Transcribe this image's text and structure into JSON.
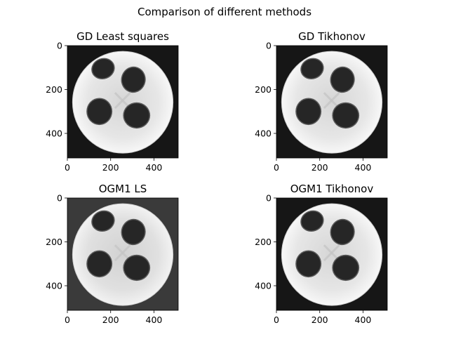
{
  "figure": {
    "suptitle": "Comparison of different methods"
  },
  "chart_data": [
    {
      "type": "image",
      "title": "GD Least squares",
      "xlim": [
        0,
        512
      ],
      "ylim": [
        512,
        0
      ],
      "xticks": [
        "0",
        "200",
        "400"
      ],
      "yticks": [
        "0",
        "200",
        "400"
      ],
      "background": "#161616",
      "colormap": "gray"
    },
    {
      "type": "image",
      "title": "GD Tikhonov",
      "xlim": [
        0,
        512
      ],
      "ylim": [
        512,
        0
      ],
      "xticks": [
        "0",
        "200",
        "400"
      ],
      "yticks": [
        "0",
        "200",
        "400"
      ],
      "background": "#161616",
      "colormap": "gray"
    },
    {
      "type": "image",
      "title": "OGM1 LS",
      "xlim": [
        0,
        512
      ],
      "ylim": [
        512,
        0
      ],
      "xticks": [
        "0",
        "200",
        "400"
      ],
      "yticks": [
        "0",
        "200",
        "400"
      ],
      "background": "#3a3a3a",
      "colormap": "gray"
    },
    {
      "type": "image",
      "title": "OGM1 Tikhonov",
      "xlim": [
        0,
        512
      ],
      "ylim": [
        512,
        0
      ],
      "xticks": [
        "0",
        "200",
        "400"
      ],
      "yticks": [
        "0",
        "200",
        "400"
      ],
      "background": "#161616",
      "colormap": "gray"
    }
  ]
}
